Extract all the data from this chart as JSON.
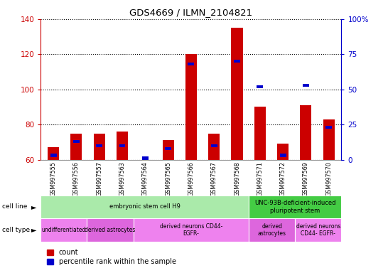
{
  "title": "GDS4669 / ILMN_2104821",
  "samples": [
    "GSM997555",
    "GSM997556",
    "GSM997557",
    "GSM997563",
    "GSM997564",
    "GSM997565",
    "GSM997566",
    "GSM997567",
    "GSM997568",
    "GSM997571",
    "GSM997572",
    "GSM997569",
    "GSM997570"
  ],
  "count_values": [
    67,
    75,
    75,
    76,
    60,
    71,
    120,
    75,
    135,
    90,
    69,
    91,
    83
  ],
  "percentile_values": [
    3,
    13,
    10,
    10,
    1,
    8,
    68,
    10,
    70,
    52,
    3,
    53,
    23
  ],
  "left_ylim": [
    60,
    140
  ],
  "left_yticks": [
    60,
    80,
    100,
    120,
    140
  ],
  "right_ylim": [
    0,
    100
  ],
  "right_yticks": [
    0,
    25,
    50,
    75,
    100
  ],
  "bar_color_red": "#cc0000",
  "bar_color_blue": "#0000cc",
  "bar_width": 0.5,
  "cell_line_groups": [
    {
      "label": "embryonic stem cell H9",
      "start": 0,
      "end": 9,
      "color": "#aaeaaa"
    },
    {
      "label": "UNC-93B-deficient-induced\npluripotent stem",
      "start": 9,
      "end": 13,
      "color": "#44cc44"
    }
  ],
  "cell_type_groups": [
    {
      "label": "undifferentiated",
      "start": 0,
      "end": 2,
      "color": "#ee82ee"
    },
    {
      "label": "derived astrocytes",
      "start": 2,
      "end": 4,
      "color": "#ee82ee"
    },
    {
      "label": "derived neurons CD44-\nEGFR-",
      "start": 4,
      "end": 9,
      "color": "#ee82ee"
    },
    {
      "label": "derived\nastrocytes",
      "start": 9,
      "end": 11,
      "color": "#ee82ee"
    },
    {
      "label": "derived neurons\nCD44- EGFR-",
      "start": 11,
      "end": 13,
      "color": "#ee82ee"
    }
  ],
  "cell_line_label": "cell line",
  "cell_type_label": "cell type",
  "legend_count": "count",
  "legend_percentile": "percentile rank within the sample",
  "left_tick_color": "#cc0000",
  "right_tick_color": "#0000cc",
  "xtick_bg_color": "#cccccc"
}
